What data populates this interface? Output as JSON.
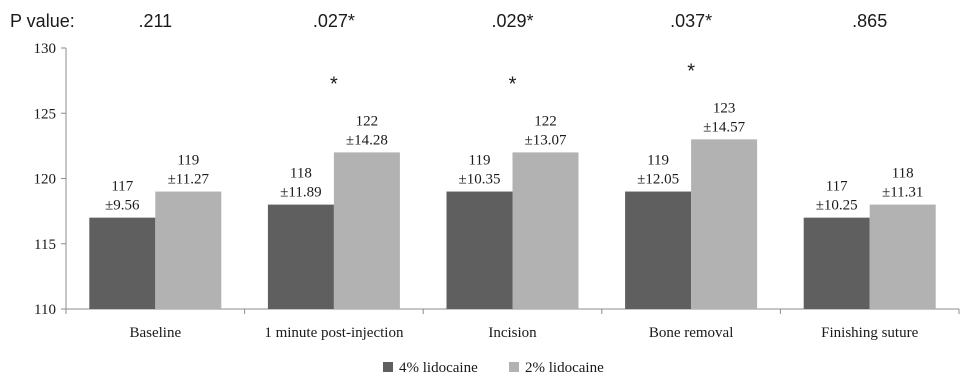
{
  "chart_data": {
    "type": "bar",
    "title": "",
    "xlabel": "",
    "ylabel": "",
    "ylim": [
      110,
      130
    ],
    "yticks": [
      110,
      115,
      120,
      125,
      130
    ],
    "grid": false,
    "legend_position": "bottom",
    "categories": [
      "Baseline",
      "1 minute post-injection",
      "Incision",
      "Bone removal",
      "Finishing suture"
    ],
    "p_value_label": "P  value:",
    "p_values": [
      ".211",
      ".027*",
      ".029*",
      ".037*",
      ".865"
    ],
    "significance_markers": [
      "",
      "*",
      "*",
      "*",
      ""
    ],
    "series": [
      {
        "name": "4% lidocaine",
        "color": "#5f5f5f",
        "values": [
          117,
          118,
          119,
          119,
          117
        ],
        "sd_labels": [
          "±9.56",
          "±11.89",
          "±10.35",
          "±12.05",
          "±10.25"
        ]
      },
      {
        "name": "2% lidocaine",
        "color": "#b2b2b2",
        "values": [
          119,
          122,
          122,
          123,
          118
        ],
        "sd_labels": [
          "±11.27",
          "±14.28",
          "±13.07",
          "±14.57",
          "±11.31"
        ]
      }
    ]
  }
}
